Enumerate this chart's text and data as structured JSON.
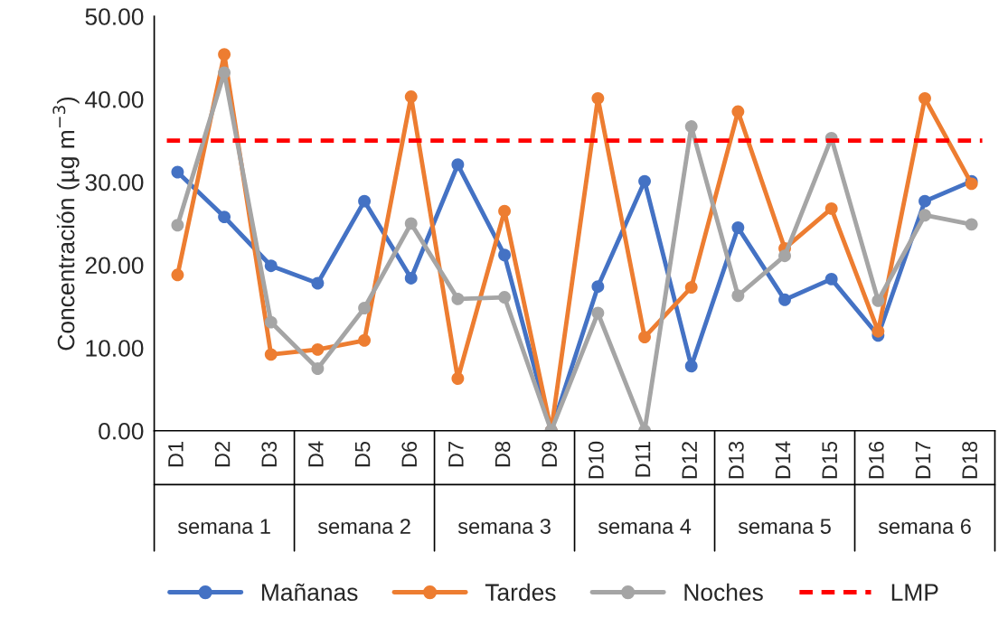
{
  "chart_data": {
    "type": "line",
    "ylabel": "Concentración (µg m$^{−3}$)",
    "categories": [
      "D1",
      "D2",
      "D3",
      "D4",
      "D5",
      "D6",
      "D7",
      "D8",
      "D9",
      "D10",
      "D11",
      "D12",
      "D13",
      "D14",
      "D15",
      "D16",
      "D17",
      "D18"
    ],
    "series": [
      {
        "name": "Mañanas",
        "color": "#4472c4",
        "values": [
          31.2,
          25.8,
          19.9,
          17.8,
          27.7,
          18.4,
          32.1,
          21.2,
          0,
          17.4,
          30.1,
          7.8,
          24.5,
          15.8,
          18.3,
          11.5,
          27.7,
          30.1
        ]
      },
      {
        "name": "Tardes",
        "color": "#ed7d31",
        "values": [
          18.8,
          45.4,
          9.2,
          9.8,
          10.9,
          40.3,
          6.3,
          26.5,
          0,
          40.1,
          11.3,
          17.3,
          38.5,
          22.0,
          26.8,
          12.0,
          40.1,
          29.8
        ]
      },
      {
        "name": "Noches",
        "color": "#a5a5a5",
        "values": [
          24.8,
          43.2,
          13.1,
          7.5,
          14.8,
          25.0,
          15.9,
          16.1,
          0,
          14.2,
          0,
          36.7,
          16.3,
          21.1,
          35.3,
          15.7,
          26.0,
          24.9
        ]
      }
    ],
    "ref_lines": [
      {
        "axis": "y",
        "value": 35,
        "label": "LMP",
        "color": "#ff0000",
        "line_style": "dashed"
      }
    ],
    "annotations": [
      "semana 1",
      "semana 2",
      "semana 3",
      "semana 4",
      "semana 5",
      "semana 6"
    ],
    "ylim": [
      0,
      50
    ],
    "yticks": [
      {
        "value": 0,
        "label": "0.00"
      },
      {
        "value": 10,
        "label": "10.00"
      },
      {
        "value": 20,
        "label": "20.00"
      },
      {
        "value": 30,
        "label": "30.00"
      },
      {
        "value": 40,
        "label": "40.00"
      },
      {
        "value": 50,
        "label": "50.00"
      }
    ],
    "marker": "circle",
    "line_style": "solid",
    "grid": false,
    "legend": "bottom"
  }
}
